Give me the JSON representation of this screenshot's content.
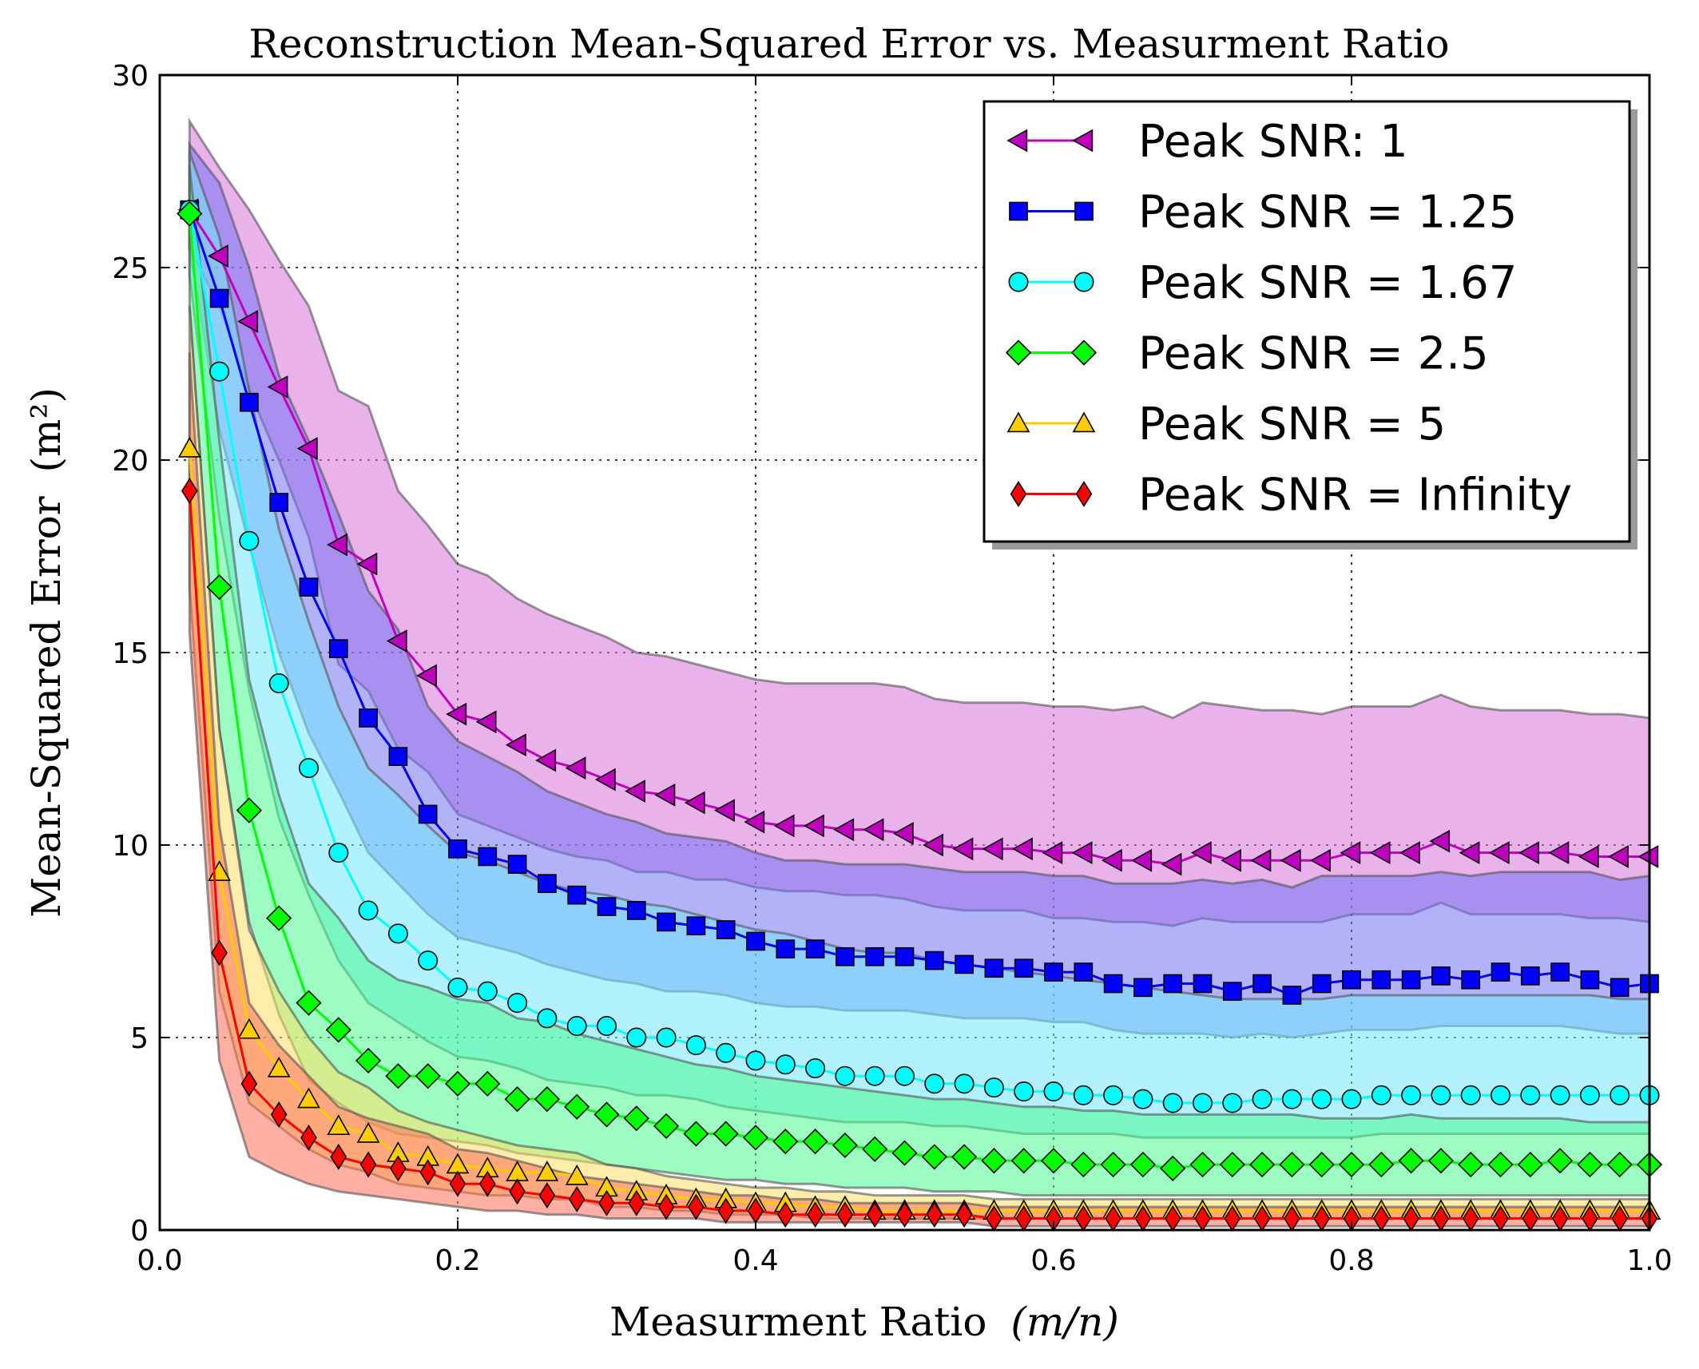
{
  "chart_data": {
    "type": "line",
    "title": "Reconstruction Mean-Squared Error vs. Measurment Ratio",
    "xlabel_main": "Measurment Ratio",
    "xlabel_unit": "(m/n)",
    "ylabel_main": "Mean-Squared Error",
    "ylabel_unit": "(m²)",
    "xlim": [
      0.0,
      1.0
    ],
    "ylim": [
      0,
      30
    ],
    "xticks": [
      "0.0",
      "0.2",
      "0.4",
      "0.6",
      "0.8",
      "1.0"
    ],
    "yticks": [
      "0",
      "5",
      "10",
      "15",
      "20",
      "25",
      "30"
    ],
    "grid": true,
    "legend_position": "top-right",
    "x": [
      0.02,
      0.04,
      0.06,
      0.08,
      0.1,
      0.12,
      0.14,
      0.16,
      0.18,
      0.2,
      0.22,
      0.24,
      0.26,
      0.28,
      0.3,
      0.32,
      0.34,
      0.36,
      0.38,
      0.4,
      0.42,
      0.44,
      0.46,
      0.48,
      0.5,
      0.52,
      0.54,
      0.56,
      0.58,
      0.6,
      0.62,
      0.64,
      0.66,
      0.68,
      0.7,
      0.72,
      0.74,
      0.76,
      0.78,
      0.8,
      0.82,
      0.84,
      0.86,
      0.88,
      0.9,
      0.92,
      0.94,
      0.96,
      0.98,
      1.0
    ],
    "series": [
      {
        "name": "Peak SNR: 1",
        "color": "#bf00bf",
        "band_color": "#d973d9",
        "marker": "triangle-left",
        "values": [
          26.5,
          25.3,
          23.6,
          21.9,
          20.3,
          17.8,
          17.3,
          15.3,
          14.4,
          13.4,
          13.2,
          12.6,
          12.2,
          12.0,
          11.7,
          11.4,
          11.3,
          11.1,
          10.9,
          10.6,
          10.5,
          10.5,
          10.4,
          10.4,
          10.3,
          10.0,
          9.9,
          9.9,
          9.9,
          9.8,
          9.8,
          9.6,
          9.6,
          9.5,
          9.8,
          9.6,
          9.6,
          9.6,
          9.6,
          9.8,
          9.8,
          9.8,
          10.1,
          9.8,
          9.8,
          9.8,
          9.8,
          9.7,
          9.7,
          9.7
        ],
        "upper": [
          28.8,
          27.6,
          26.5,
          25.2,
          24.0,
          21.8,
          21.4,
          19.2,
          18.3,
          17.3,
          17.0,
          16.4,
          16.0,
          15.7,
          15.4,
          15.0,
          14.9,
          14.7,
          14.5,
          14.3,
          14.2,
          14.2,
          14.2,
          14.2,
          14.1,
          13.8,
          13.7,
          13.7,
          13.7,
          13.6,
          13.6,
          13.5,
          13.6,
          13.3,
          13.7,
          13.6,
          13.5,
          13.5,
          13.4,
          13.6,
          13.6,
          13.6,
          13.9,
          13.6,
          13.5,
          13.5,
          13.5,
          13.4,
          13.4,
          13.3
        ],
        "lower": [
          25.5,
          24.0,
          21.8,
          20.0,
          18.0,
          14.7,
          14.0,
          12.5,
          11.9,
          10.8,
          10.5,
          10.2,
          9.9,
          9.7,
          9.6,
          9.3,
          9.3,
          9.1,
          9.1,
          8.9,
          8.8,
          8.8,
          8.7,
          8.7,
          8.6,
          8.4,
          8.3,
          8.3,
          8.3,
          8.1,
          8.1,
          8.0,
          8.0,
          7.9,
          8.1,
          8.0,
          8.0,
          8.0,
          8.0,
          8.2,
          8.2,
          8.2,
          8.5,
          8.2,
          8.2,
          8.2,
          8.2,
          8.1,
          8.1,
          8.0
        ]
      },
      {
        "name": "Peak SNR = 1.25",
        "color": "#0000ff",
        "band_color": "#7373f2",
        "marker": "square",
        "values": [
          26.5,
          24.2,
          21.5,
          18.9,
          16.7,
          15.1,
          13.3,
          12.3,
          10.8,
          9.9,
          9.7,
          9.5,
          9.0,
          8.7,
          8.4,
          8.3,
          8.0,
          7.9,
          7.8,
          7.5,
          7.3,
          7.3,
          7.1,
          7.1,
          7.1,
          7.0,
          6.9,
          6.8,
          6.8,
          6.7,
          6.7,
          6.4,
          6.3,
          6.4,
          6.4,
          6.2,
          6.4,
          6.1,
          6.4,
          6.5,
          6.5,
          6.5,
          6.6,
          6.5,
          6.7,
          6.6,
          6.7,
          6.5,
          6.3,
          6.4
        ],
        "upper": [
          28.2,
          27.2,
          25.0,
          22.2,
          20.5,
          18.6,
          16.6,
          15.6,
          13.6,
          12.7,
          12.3,
          11.9,
          11.4,
          11.1,
          10.8,
          10.6,
          10.3,
          10.2,
          10.1,
          9.8,
          9.6,
          9.6,
          9.5,
          9.5,
          9.5,
          9.4,
          9.3,
          9.3,
          9.3,
          9.2,
          9.2,
          9.0,
          9.0,
          9.0,
          9.1,
          9.0,
          9.1,
          8.9,
          9.2,
          9.2,
          9.2,
          9.2,
          9.3,
          9.2,
          9.3,
          9.3,
          9.3,
          9.3,
          9.1,
          9.2
        ],
        "lower": [
          25.5,
          20.8,
          17.8,
          15.0,
          12.9,
          11.4,
          9.8,
          9.0,
          8.2,
          7.6,
          7.4,
          7.2,
          6.9,
          6.7,
          6.5,
          6.4,
          6.2,
          6.2,
          6.1,
          5.9,
          5.8,
          5.8,
          5.7,
          5.7,
          5.7,
          5.6,
          5.5,
          5.5,
          5.5,
          5.4,
          5.4,
          5.2,
          5.1,
          5.1,
          5.1,
          5.0,
          5.1,
          5.0,
          5.1,
          5.2,
          5.2,
          5.2,
          5.3,
          5.3,
          5.3,
          5.3,
          5.3,
          5.2,
          5.1,
          5.1
        ]
      },
      {
        "name": "Peak SNR = 1.67",
        "color": "#00ffff",
        "band_color": "#73e8ff",
        "marker": "circle",
        "values": [
          26.5,
          22.3,
          17.9,
          14.2,
          12.0,
          9.8,
          8.3,
          7.7,
          7.0,
          6.3,
          6.2,
          5.9,
          5.5,
          5.3,
          5.3,
          5.0,
          5.0,
          4.8,
          4.6,
          4.4,
          4.3,
          4.2,
          4.0,
          4.0,
          4.0,
          3.8,
          3.8,
          3.7,
          3.6,
          3.6,
          3.5,
          3.5,
          3.4,
          3.3,
          3.3,
          3.3,
          3.4,
          3.4,
          3.4,
          3.4,
          3.5,
          3.5,
          3.5,
          3.5,
          3.5,
          3.5,
          3.5,
          3.5,
          3.5,
          3.5
        ],
        "upper": [
          28.0,
          25.8,
          21.8,
          18.2,
          15.8,
          13.6,
          12.0,
          11.3,
          10.5,
          9.8,
          9.6,
          9.3,
          9.0,
          8.8,
          8.7,
          8.5,
          8.4,
          8.2,
          8.0,
          7.8,
          7.7,
          7.5,
          7.3,
          7.2,
          7.2,
          7.0,
          6.9,
          6.8,
          6.7,
          6.6,
          6.5,
          6.4,
          6.3,
          6.2,
          6.1,
          6.0,
          6.0,
          6.0,
          6.0,
          6.1,
          6.1,
          6.1,
          6.1,
          6.1,
          6.1,
          6.1,
          6.1,
          6.1,
          6.0,
          6.0
        ],
        "lower": [
          24.8,
          18.5,
          14.0,
          10.7,
          8.7,
          7.0,
          5.9,
          5.4,
          4.9,
          4.5,
          4.4,
          4.2,
          3.9,
          3.8,
          3.7,
          3.5,
          3.5,
          3.4,
          3.2,
          3.1,
          3.0,
          2.9,
          2.8,
          2.8,
          2.8,
          2.7,
          2.7,
          2.6,
          2.5,
          2.5,
          2.5,
          2.5,
          2.4,
          2.4,
          2.4,
          2.4,
          2.4,
          2.4,
          2.4,
          2.4,
          2.5,
          2.5,
          2.5,
          2.5,
          2.5,
          2.5,
          2.5,
          2.5,
          2.5,
          2.5
        ]
      },
      {
        "name": "Peak SNR = 2.5",
        "color": "#00ff00",
        "band_color": "#4dfa8f",
        "marker": "diamond",
        "values": [
          26.4,
          16.7,
          10.9,
          8.1,
          5.9,
          5.2,
          4.4,
          4.0,
          4.0,
          3.8,
          3.8,
          3.4,
          3.4,
          3.2,
          3.0,
          2.9,
          2.7,
          2.5,
          2.5,
          2.4,
          2.3,
          2.3,
          2.2,
          2.1,
          2.0,
          1.9,
          1.9,
          1.8,
          1.8,
          1.8,
          1.7,
          1.7,
          1.7,
          1.6,
          1.7,
          1.7,
          1.7,
          1.7,
          1.7,
          1.7,
          1.7,
          1.8,
          1.8,
          1.7,
          1.7,
          1.7,
          1.8,
          1.7,
          1.7,
          1.7
        ],
        "upper": [
          27.6,
          20.5,
          14.3,
          11.3,
          9.0,
          8.1,
          7.0,
          6.5,
          6.3,
          6.0,
          5.9,
          5.5,
          5.4,
          5.1,
          4.9,
          4.7,
          4.5,
          4.3,
          4.2,
          4.0,
          3.9,
          3.8,
          3.7,
          3.6,
          3.5,
          3.4,
          3.4,
          3.3,
          3.2,
          3.2,
          3.1,
          3.1,
          3.0,
          3.0,
          3.0,
          3.0,
          3.0,
          3.0,
          2.9,
          2.9,
          2.9,
          3.0,
          2.9,
          2.9,
          2.9,
          2.9,
          2.9,
          2.8,
          2.8,
          2.8
        ],
        "lower": [
          24.0,
          13.0,
          8.0,
          5.6,
          3.9,
          3.3,
          2.8,
          2.5,
          2.4,
          2.3,
          2.2,
          2.0,
          1.9,
          1.8,
          1.7,
          1.6,
          1.5,
          1.4,
          1.3,
          1.3,
          1.2,
          1.2,
          1.1,
          1.1,
          1.1,
          1.0,
          1.0,
          1.0,
          0.9,
          0.9,
          0.9,
          0.9,
          0.9,
          0.9,
          0.9,
          0.9,
          0.9,
          0.9,
          0.9,
          0.9,
          0.9,
          0.9,
          0.9,
          0.9,
          0.9,
          0.9,
          0.9,
          0.9,
          0.9,
          0.9
        ]
      },
      {
        "name": "Peak SNR = 5",
        "color": "#ffcc00",
        "band_color": "#ffe066",
        "marker": "triangle-up",
        "values": [
          20.3,
          9.3,
          5.2,
          4.2,
          3.4,
          2.7,
          2.5,
          2.0,
          1.9,
          1.7,
          1.6,
          1.5,
          1.5,
          1.4,
          1.1,
          1.0,
          0.9,
          0.8,
          0.8,
          0.7,
          0.7,
          0.6,
          0.6,
          0.5,
          0.5,
          0.5,
          0.5,
          0.5,
          0.5,
          0.5,
          0.5,
          0.5,
          0.5,
          0.5,
          0.5,
          0.5,
          0.5,
          0.5,
          0.5,
          0.5,
          0.5,
          0.5,
          0.5,
          0.5,
          0.5,
          0.5,
          0.5,
          0.5,
          0.5,
          0.5
        ],
        "upper": [
          24.0,
          13.0,
          7.8,
          6.2,
          5.0,
          4.1,
          3.7,
          3.1,
          2.8,
          2.6,
          2.4,
          2.2,
          2.1,
          2.0,
          1.7,
          1.6,
          1.4,
          1.3,
          1.2,
          1.1,
          1.1,
          1.0,
          1.0,
          0.9,
          0.9,
          0.9,
          0.9,
          0.8,
          0.8,
          0.8,
          0.8,
          0.8,
          0.8,
          0.8,
          0.8,
          0.8,
          0.8,
          0.8,
          0.8,
          0.8,
          0.8,
          0.8,
          0.8,
          0.8,
          0.8,
          0.8,
          0.8,
          0.8,
          0.8,
          0.8
        ],
        "lower": [
          16.7,
          6.2,
          3.3,
          2.7,
          2.1,
          1.7,
          1.5,
          1.2,
          1.1,
          1.0,
          0.9,
          0.9,
          0.8,
          0.8,
          0.6,
          0.6,
          0.5,
          0.5,
          0.4,
          0.4,
          0.4,
          0.3,
          0.3,
          0.3,
          0.3,
          0.3,
          0.3,
          0.3,
          0.3,
          0.3,
          0.3,
          0.3,
          0.3,
          0.3,
          0.3,
          0.3,
          0.3,
          0.3,
          0.3,
          0.3,
          0.3,
          0.3,
          0.3,
          0.3,
          0.3,
          0.3,
          0.3,
          0.3,
          0.3,
          0.3
        ]
      },
      {
        "name": "Peak SNR = Infinity",
        "color": "#ff0000",
        "band_color": "#ff6f55",
        "marker": "thin-diamond",
        "values": [
          19.2,
          7.2,
          3.8,
          3.0,
          2.4,
          1.9,
          1.7,
          1.6,
          1.5,
          1.2,
          1.2,
          1.0,
          0.9,
          0.8,
          0.7,
          0.7,
          0.6,
          0.6,
          0.5,
          0.5,
          0.4,
          0.4,
          0.4,
          0.4,
          0.4,
          0.4,
          0.4,
          0.3,
          0.3,
          0.3,
          0.3,
          0.3,
          0.3,
          0.3,
          0.3,
          0.3,
          0.3,
          0.3,
          0.3,
          0.3,
          0.3,
          0.3,
          0.3,
          0.3,
          0.3,
          0.3,
          0.3,
          0.3,
          0.3,
          0.3
        ],
        "upper": [
          22.8,
          10.5,
          5.9,
          4.8,
          4.0,
          3.2,
          2.9,
          2.7,
          2.5,
          2.1,
          2.0,
          1.8,
          1.6,
          1.4,
          1.3,
          1.2,
          1.1,
          1.0,
          0.9,
          0.9,
          0.8,
          0.8,
          0.7,
          0.7,
          0.7,
          0.7,
          0.7,
          0.6,
          0.6,
          0.6,
          0.6,
          0.6,
          0.6,
          0.6,
          0.6,
          0.6,
          0.6,
          0.6,
          0.6,
          0.6,
          0.6,
          0.6,
          0.6,
          0.6,
          0.6,
          0.6,
          0.6,
          0.6,
          0.6,
          0.6
        ],
        "lower": [
          15.5,
          4.4,
          1.9,
          1.5,
          1.2,
          1.0,
          0.9,
          0.8,
          0.7,
          0.6,
          0.5,
          0.5,
          0.4,
          0.4,
          0.3,
          0.3,
          0.3,
          0.3,
          0.2,
          0.2,
          0.2,
          0.2,
          0.2,
          0.2,
          0.2,
          0.2,
          0.2,
          0.1,
          0.1,
          0.1,
          0.1,
          0.1,
          0.1,
          0.1,
          0.1,
          0.1,
          0.1,
          0.1,
          0.1,
          0.1,
          0.1,
          0.1,
          0.1,
          0.1,
          0.1,
          0.1,
          0.1,
          0.1,
          0.1,
          0.1
        ]
      }
    ]
  }
}
